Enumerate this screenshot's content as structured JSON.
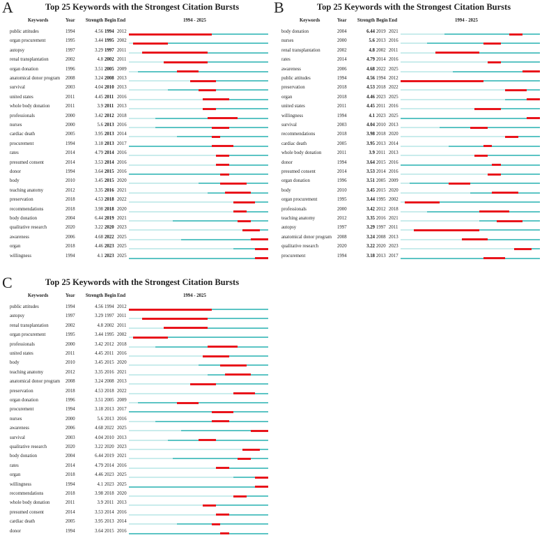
{
  "chart_data": [
    {
      "type": "table",
      "panel": "A",
      "title": "Top 25 Keywords with the Strongest Citation Bursts",
      "range_label": "1994 - 2025",
      "range": [
        1994,
        2025
      ],
      "bold_column": "begin",
      "headers": [
        "Keywords",
        "Year",
        "Strength",
        "Begin",
        "End"
      ],
      "rows": [
        [
          "public attitudes",
          "1994",
          "4.56",
          "1994",
          "2012"
        ],
        [
          "organ procurement",
          "1995",
          "3.44",
          "1995",
          "2002"
        ],
        [
          "autopsy",
          "1997",
          "3.29",
          "1997",
          "2011"
        ],
        [
          "renal transplantation",
          "2002",
          "4.8",
          "2002",
          "2011"
        ],
        [
          "organ donation",
          "1996",
          "3.51",
          "2005",
          "2009"
        ],
        [
          "anatomical donor program",
          "2008",
          "3.24",
          "2008",
          "2013"
        ],
        [
          "survival",
          "2003",
          "4.04",
          "2010",
          "2013"
        ],
        [
          "united states",
          "2011",
          "4.45",
          "2011",
          "2016"
        ],
        [
          "whole body donation",
          "2011",
          "3.9",
          "2011",
          "2013"
        ],
        [
          "professionals",
          "2000",
          "3.42",
          "2012",
          "2018"
        ],
        [
          "nurses",
          "2000",
          "5.6",
          "2013",
          "2016"
        ],
        [
          "cardiac death",
          "2005",
          "3.95",
          "2013",
          "2014"
        ],
        [
          "procurement",
          "1994",
          "3.18",
          "2013",
          "2017"
        ],
        [
          "rates",
          "2014",
          "4.79",
          "2014",
          "2016"
        ],
        [
          "presumed consent",
          "2014",
          "3.53",
          "2014",
          "2016"
        ],
        [
          "donor",
          "1994",
          "3.64",
          "2015",
          "2016"
        ],
        [
          "body",
          "2010",
          "3.45",
          "2015",
          "2020"
        ],
        [
          "teaching anatomy",
          "2012",
          "3.35",
          "2016",
          "2021"
        ],
        [
          "preservation",
          "2018",
          "4.53",
          "2018",
          "2022"
        ],
        [
          "recommendations",
          "2018",
          "3.98",
          "2018",
          "2020"
        ],
        [
          "body donation",
          "2004",
          "6.44",
          "2019",
          "2021"
        ],
        [
          "qualitative research",
          "2020",
          "3.22",
          "2020",
          "2023"
        ],
        [
          "awareness",
          "2006",
          "4.68",
          "2022",
          "2025"
        ],
        [
          "organ",
          "2018",
          "4.46",
          "2023",
          "2025"
        ],
        [
          "willingness",
          "1994",
          "4.1",
          "2023",
          "2025"
        ]
      ]
    },
    {
      "type": "table",
      "panel": "B",
      "title": "Top 25 Keywords with the Strongest Citation Bursts",
      "range_label": "1994 - 2025",
      "range": [
        1994,
        2025
      ],
      "bold_column": "strength",
      "headers": [
        "Keywords",
        "Year",
        "Strength",
        "Begin",
        "End"
      ],
      "rows": [
        [
          "body donation",
          "2004",
          "6.44",
          "2019",
          "2021"
        ],
        [
          "nurses",
          "2000",
          "5.6",
          "2013",
          "2016"
        ],
        [
          "renal transplantation",
          "2002",
          "4.8",
          "2002",
          "2011"
        ],
        [
          "rates",
          "2014",
          "4.79",
          "2014",
          "2016"
        ],
        [
          "awareness",
          "2006",
          "4.68",
          "2022",
          "2025"
        ],
        [
          "public attitudes",
          "1994",
          "4.56",
          "1994",
          "2012"
        ],
        [
          "preservation",
          "2018",
          "4.53",
          "2018",
          "2022"
        ],
        [
          "organ",
          "2018",
          "4.46",
          "2023",
          "2025"
        ],
        [
          "united states",
          "2011",
          "4.45",
          "2011",
          "2016"
        ],
        [
          "willingness",
          "1994",
          "4.1",
          "2023",
          "2025"
        ],
        [
          "survival",
          "2003",
          "4.04",
          "2010",
          "2013"
        ],
        [
          "recommendations",
          "2018",
          "3.98",
          "2018",
          "2020"
        ],
        [
          "cardiac death",
          "2005",
          "3.95",
          "2013",
          "2014"
        ],
        [
          "whole body donation",
          "2011",
          "3.9",
          "2011",
          "2013"
        ],
        [
          "donor",
          "1994",
          "3.64",
          "2015",
          "2016"
        ],
        [
          "presumed consent",
          "2014",
          "3.53",
          "2014",
          "2016"
        ],
        [
          "organ donation",
          "1996",
          "3.51",
          "2005",
          "2009"
        ],
        [
          "body",
          "2010",
          "3.45",
          "2015",
          "2020"
        ],
        [
          "organ procurement",
          "1995",
          "3.44",
          "1995",
          "2002"
        ],
        [
          "professionals",
          "2000",
          "3.42",
          "2012",
          "2018"
        ],
        [
          "teaching anatomy",
          "2012",
          "3.35",
          "2016",
          "2021"
        ],
        [
          "autopsy",
          "1997",
          "3.29",
          "1997",
          "2011"
        ],
        [
          "anatomical donor program",
          "2008",
          "3.24",
          "2008",
          "2013"
        ],
        [
          "qualitative research",
          "2020",
          "3.22",
          "2020",
          "2023"
        ],
        [
          "procurement",
          "1994",
          "3.18",
          "2013",
          "2017"
        ]
      ]
    },
    {
      "type": "table",
      "panel": "C",
      "title": "Top 25 Keywords with the Strongest Citation Bursts",
      "range_label": "1994 - 2025",
      "range": [
        1994,
        2025
      ],
      "bold_column": "",
      "headers": [
        "Keywords",
        "Year",
        "Strength",
        "Begin",
        "End"
      ],
      "rows": [
        [
          "public attitudes",
          "1994",
          "4.56",
          "1994",
          "2012"
        ],
        [
          "autopsy",
          "1997",
          "3.29",
          "1997",
          "2011"
        ],
        [
          "renal transplantation",
          "2002",
          "4.8",
          "2002",
          "2011"
        ],
        [
          "organ procurement",
          "1995",
          "3.44",
          "1995",
          "2002"
        ],
        [
          "professionals",
          "2000",
          "3.42",
          "2012",
          "2018"
        ],
        [
          "united states",
          "2011",
          "4.45",
          "2011",
          "2016"
        ],
        [
          "body",
          "2010",
          "3.45",
          "2015",
          "2020"
        ],
        [
          "teaching anatomy",
          "2012",
          "3.35",
          "2016",
          "2021"
        ],
        [
          "anatomical donor program",
          "2008",
          "3.24",
          "2008",
          "2013"
        ],
        [
          "preservation",
          "2018",
          "4.53",
          "2018",
          "2022"
        ],
        [
          "organ donation",
          "1996",
          "3.51",
          "2005",
          "2009"
        ],
        [
          "procurement",
          "1994",
          "3.18",
          "2013",
          "2017"
        ],
        [
          "nurses",
          "2000",
          "5.6",
          "2013",
          "2016"
        ],
        [
          "awareness",
          "2006",
          "4.68",
          "2022",
          "2025"
        ],
        [
          "survival",
          "2003",
          "4.04",
          "2010",
          "2013"
        ],
        [
          "qualitative research",
          "2020",
          "3.22",
          "2020",
          "2023"
        ],
        [
          "body donation",
          "2004",
          "6.44",
          "2019",
          "2021"
        ],
        [
          "rates",
          "2014",
          "4.79",
          "2014",
          "2016"
        ],
        [
          "organ",
          "2018",
          "4.46",
          "2023",
          "2025"
        ],
        [
          "willingness",
          "1994",
          "4.1",
          "2023",
          "2025"
        ],
        [
          "recommendations",
          "2018",
          "3.98",
          "2018",
          "2020"
        ],
        [
          "whole body donation",
          "2011",
          "3.9",
          "2011",
          "2013"
        ],
        [
          "presumed consent",
          "2014",
          "3.53",
          "2014",
          "2016"
        ],
        [
          "cardiac death",
          "2005",
          "3.95",
          "2013",
          "2014"
        ],
        [
          "donor",
          "1994",
          "3.64",
          "2015",
          "2016"
        ]
      ]
    }
  ],
  "colors": {
    "burst": "#e8141b",
    "active": "#5bc4c4",
    "inactive": "#c9ecec"
  }
}
